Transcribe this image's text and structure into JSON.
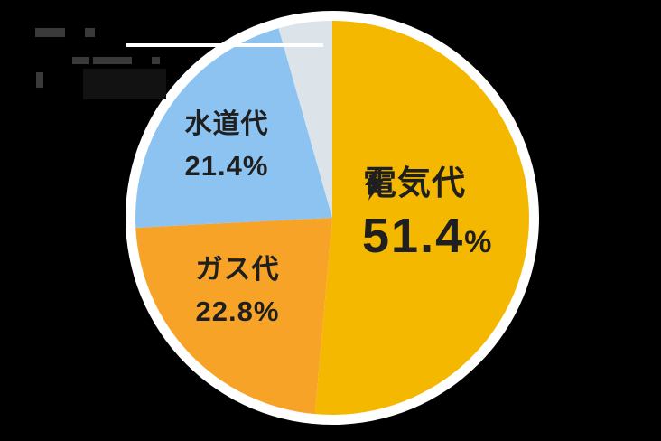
{
  "background_color": "#000000",
  "chart_data": {
    "type": "pie",
    "title": "",
    "direction": "clockwise",
    "start_angle_deg": 0,
    "rim_color": "#FFFFFF",
    "text_color": "#1F1F1F",
    "center": "pie centered left-of-right half, white outer ring",
    "slices": [
      {
        "name": "電気代",
        "value": 51.4,
        "pct_text": "51.4",
        "pct_sign": "%",
        "color": "#F5B801",
        "icon": "lightning-bolt"
      },
      {
        "name": "ガス代",
        "value": 22.8,
        "pct_text": "22.8%",
        "pct_sign": "",
        "color": "#F7A328",
        "icon": ""
      },
      {
        "name": "水道代",
        "value": 21.4,
        "pct_text": "21.4%",
        "pct_sign": "",
        "color": "#8DC3F0",
        "icon": ""
      },
      {
        "name": "",
        "value": 4.4,
        "pct_text": "",
        "pct_sign": "",
        "color": "#DCE4EA",
        "icon": "",
        "label_visible": false,
        "callout_line": "white horizontal line toward upper-left"
      }
    ],
    "legend": "none"
  }
}
